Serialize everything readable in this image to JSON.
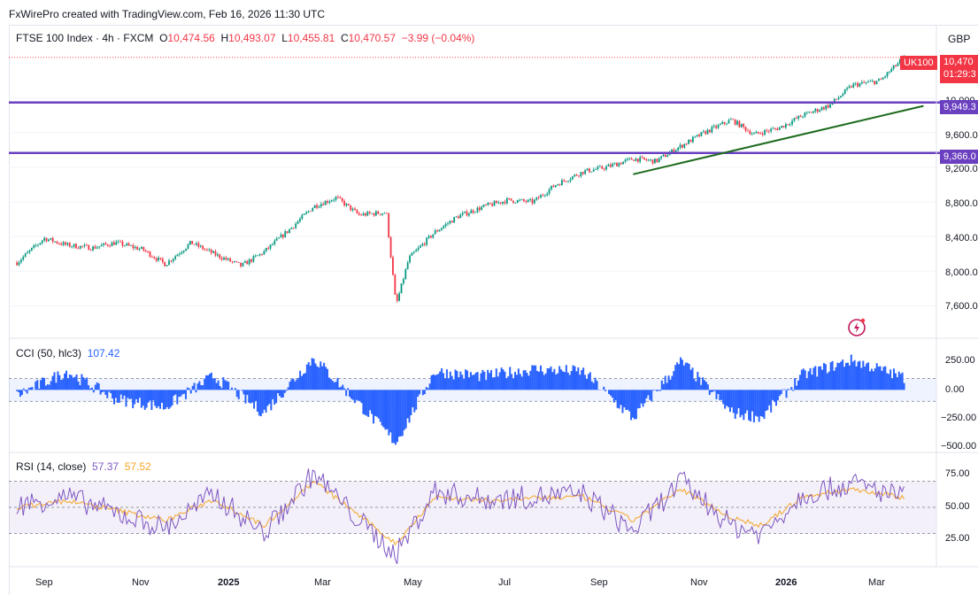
{
  "header": {
    "created": "FxWirePro created with TradingView.com, Feb 16, 2026 11:30 UTC"
  },
  "legend": {
    "symbol": "FTSE 100 Index · 4h · FXCM",
    "o_label": "O",
    "o_value": "10,474.56",
    "h_label": "H",
    "h_value": "10,493.07",
    "l_label": "L",
    "l_value": "10,455.81",
    "c_label": "C",
    "c_value": "10,470.57",
    "change": "−3.99 (−0.04%)"
  },
  "currency": "GBP",
  "price_axis": {
    "ticks": [
      "10,000.00",
      "9,600.00",
      "9,200.00",
      "8,800.00",
      "8,400.00",
      "8,000.00",
      "7,600.00"
    ]
  },
  "tags": {
    "symbol_tag": "UK100",
    "last_price": "10,470",
    "countdown": "01:29:3",
    "level1": "9,949.3",
    "level2": "9,366.0"
  },
  "cci": {
    "label": "CCI (50, hlc3)",
    "value": "107.42",
    "ticks": [
      "250.00",
      "0.00",
      "−250.00",
      "−500.00"
    ]
  },
  "rsi": {
    "label": "RSI (14, close)",
    "value": "57.37",
    "ma_value": "57.52",
    "ticks": [
      "75.00",
      "50.00",
      "25.00"
    ]
  },
  "time_axis": {
    "labels": [
      "Sep",
      "Nov",
      "2025",
      "Mar",
      "May",
      "Jul",
      "Sep",
      "Nov",
      "2026",
      "Mar"
    ]
  },
  "colors": {
    "up": "#089981",
    "down": "#f23645",
    "level_line": "#6a3fc0",
    "trendline": "#1e6b1e",
    "cci": "#2962ff",
    "rsi": "#7e57c2",
    "rsi_ma": "#f5a524"
  },
  "chart_data": [
    {
      "type": "line",
      "title": "FTSE 100 Index · 4h · FXCM",
      "x": [
        "2024-08-15",
        "2024-09-01",
        "2024-09-15",
        "2024-10-01",
        "2024-10-15",
        "2024-11-01",
        "2024-11-15",
        "2024-12-01",
        "2024-12-15",
        "2025-01-01",
        "2025-01-15",
        "2025-02-01",
        "2025-02-15",
        "2025-03-01",
        "2025-03-15",
        "2025-04-01",
        "2025-04-07",
        "2025-04-15",
        "2025-05-01",
        "2025-05-15",
        "2025-06-01",
        "2025-06-15",
        "2025-07-01",
        "2025-07-15",
        "2025-08-01",
        "2025-08-15",
        "2025-09-01",
        "2025-09-15",
        "2025-10-01",
        "2025-10-15",
        "2025-11-01",
        "2025-11-15",
        "2025-12-01",
        "2025-12-15",
        "2026-01-01",
        "2026-01-15",
        "2026-02-01",
        "2026-02-16"
      ],
      "series": [
        {
          "values": [
            8100,
            8380,
            8300,
            8270,
            8330,
            8250,
            8080,
            8330,
            8200,
            8060,
            8220,
            8500,
            8750,
            8850,
            8650,
            8680,
            7600,
            8150,
            8450,
            8630,
            8750,
            8820,
            8800,
            9000,
            9150,
            9200,
            9300,
            9270,
            9450,
            9600,
            9750,
            9580,
            9660,
            9800,
            9920,
            10150,
            10200,
            10470
          ]
        }
      ],
      "ylim": [
        7450,
        10520
      ],
      "horizontal_levels": [
        9949.3,
        9366.0
      ],
      "trendline": {
        "x": [
          "2025-09-01",
          "2026-02-28"
        ],
        "y": [
          9120,
          9910
        ]
      }
    },
    {
      "type": "bar",
      "title": "CCI (50, hlc3)",
      "x": [
        "2024-08-15",
        "2024-09-15",
        "2024-10-15",
        "2024-11-15",
        "2024-12-15",
        "2025-01-15",
        "2025-02-15",
        "2025-03-15",
        "2025-04-07",
        "2025-05-01",
        "2025-06-01",
        "2025-07-01",
        "2025-08-01",
        "2025-09-01",
        "2025-10-01",
        "2025-11-01",
        "2025-11-20",
        "2025-12-15",
        "2026-01-15",
        "2026-02-16"
      ],
      "series": [
        {
          "values": [
            -50,
            160,
            -80,
            -150,
            120,
            -200,
            280,
            -120,
            -460,
            160,
            120,
            180,
            160,
            -250,
            250,
            -200,
            -240,
            130,
            260,
            107.42
          ]
        }
      ],
      "ylim": [
        -500,
        250
      ],
      "bands": [
        100,
        -100
      ]
    },
    {
      "type": "line",
      "title": "RSI (14, close)",
      "x": [
        "2024-08-15",
        "2024-09-15",
        "2024-10-15",
        "2024-11-15",
        "2024-12-15",
        "2025-01-15",
        "2025-02-15",
        "2025-03-15",
        "2025-04-07",
        "2025-05-01",
        "2025-06-01",
        "2025-07-01",
        "2025-08-01",
        "2025-09-01",
        "2025-10-01",
        "2025-11-01",
        "2025-11-20",
        "2025-12-15",
        "2026-01-15",
        "2026-02-16"
      ],
      "series": [
        {
          "name": "RSI",
          "values": [
            52,
            58,
            46,
            34,
            60,
            30,
            76,
            40,
            14,
            62,
            56,
            58,
            60,
            32,
            70,
            36,
            30,
            60,
            68,
            57.37
          ]
        },
        {
          "name": "MA",
          "values": [
            50,
            55,
            48,
            40,
            56,
            36,
            70,
            44,
            22,
            58,
            55,
            57,
            58,
            40,
            64,
            42,
            36,
            58,
            64,
            57.52
          ]
        }
      ],
      "ylim": [
        10,
        85
      ],
      "bands": [
        70,
        30
      ]
    }
  ]
}
